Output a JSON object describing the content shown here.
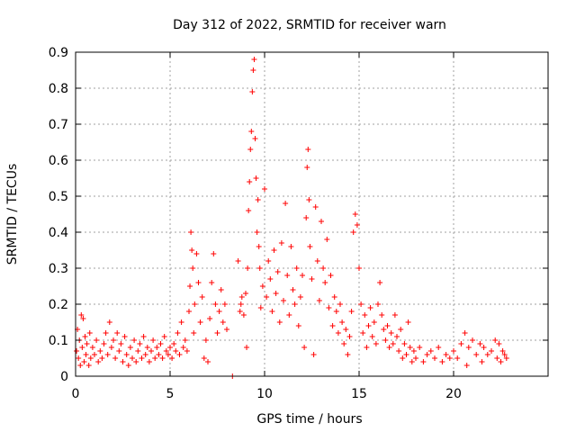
{
  "chart_data": {
    "type": "scatter",
    "title": "Day 312 of 2022, SRMTID for receiver warn",
    "xlabel": "GPS time / hours",
    "ylabel": "SRMTID / TECUs",
    "xlim": [
      0,
      25
    ],
    "ylim": [
      0,
      0.9
    ],
    "x_ticks": [
      0,
      5,
      10,
      15,
      20
    ],
    "y_ticks": [
      0,
      0.1,
      0.2,
      0.3,
      0.4,
      0.5,
      0.6,
      0.7,
      0.8,
      0.9
    ],
    "x_tick_labels": [
      "0",
      "5",
      "10",
      "15",
      "20"
    ],
    "y_tick_labels": [
      "0",
      "0.1",
      "0.2",
      "0.3",
      "0.4",
      "0.5",
      "0.6",
      "0.7",
      "0.8",
      "0.9"
    ],
    "grid": true,
    "marker": "+",
    "marker_color": "#ff0000",
    "series": [
      {
        "name": "SRMTID",
        "points": [
          [
            0.05,
            0.07
          ],
          [
            0.1,
            0.13
          ],
          [
            0.15,
            0.05
          ],
          [
            0.2,
            0.1
          ],
          [
            0.25,
            0.03
          ],
          [
            0.3,
            0.17
          ],
          [
            0.35,
            0.08
          ],
          [
            0.4,
            0.16
          ],
          [
            0.45,
            0.04
          ],
          [
            0.5,
            0.11
          ],
          [
            0.55,
            0.06
          ],
          [
            0.6,
            0.09
          ],
          [
            0.7,
            0.03
          ],
          [
            0.75,
            0.12
          ],
          [
            0.8,
            0.05
          ],
          [
            0.9,
            0.08
          ],
          [
            1.0,
            0.06
          ],
          [
            1.1,
            0.1
          ],
          [
            1.2,
            0.04
          ],
          [
            1.3,
            0.07
          ],
          [
            1.4,
            0.05
          ],
          [
            1.5,
            0.09
          ],
          [
            1.6,
            0.12
          ],
          [
            1.7,
            0.06
          ],
          [
            1.8,
            0.15
          ],
          [
            1.9,
            0.08
          ],
          [
            2.0,
            0.1
          ],
          [
            2.1,
            0.05
          ],
          [
            2.2,
            0.12
          ],
          [
            2.3,
            0.07
          ],
          [
            2.4,
            0.09
          ],
          [
            2.5,
            0.04
          ],
          [
            2.6,
            0.11
          ],
          [
            2.7,
            0.06
          ],
          [
            2.8,
            0.03
          ],
          [
            2.9,
            0.08
          ],
          [
            3.0,
            0.05
          ],
          [
            3.1,
            0.1
          ],
          [
            3.2,
            0.04
          ],
          [
            3.3,
            0.07
          ],
          [
            3.4,
            0.09
          ],
          [
            3.5,
            0.05
          ],
          [
            3.6,
            0.11
          ],
          [
            3.7,
            0.06
          ],
          [
            3.8,
            0.08
          ],
          [
            3.9,
            0.04
          ],
          [
            4.0,
            0.07
          ],
          [
            4.1,
            0.1
          ],
          [
            4.2,
            0.05
          ],
          [
            4.3,
            0.08
          ],
          [
            4.4,
            0.06
          ],
          [
            4.5,
            0.09
          ],
          [
            4.6,
            0.05
          ],
          [
            4.7,
            0.11
          ],
          [
            4.8,
            0.07
          ],
          [
            4.9,
            0.06
          ],
          [
            5.0,
            0.08
          ],
          [
            5.1,
            0.05
          ],
          [
            5.2,
            0.09
          ],
          [
            5.3,
            0.07
          ],
          [
            5.4,
            0.12
          ],
          [
            5.5,
            0.06
          ],
          [
            5.6,
            0.15
          ],
          [
            5.7,
            0.08
          ],
          [
            5.8,
            0.1
          ],
          [
            5.9,
            0.07
          ],
          [
            6.0,
            0.18
          ],
          [
            6.05,
            0.25
          ],
          [
            6.1,
            0.4
          ],
          [
            6.15,
            0.35
          ],
          [
            6.2,
            0.3
          ],
          [
            6.25,
            0.12
          ],
          [
            6.3,
            0.2
          ],
          [
            6.4,
            0.34
          ],
          [
            6.5,
            0.26
          ],
          [
            6.6,
            0.15
          ],
          [
            6.7,
            0.22
          ],
          [
            6.8,
            0.05
          ],
          [
            6.9,
            0.1
          ],
          [
            7.0,
            0.04
          ],
          [
            7.1,
            0.16
          ],
          [
            7.2,
            0.26
          ],
          [
            7.3,
            0.34
          ],
          [
            7.4,
            0.2
          ],
          [
            7.5,
            0.12
          ],
          [
            7.6,
            0.18
          ],
          [
            7.7,
            0.24
          ],
          [
            7.8,
            0.15
          ],
          [
            7.9,
            0.2
          ],
          [
            8.0,
            0.13
          ],
          [
            8.3,
            0.0
          ],
          [
            8.6,
            0.32
          ],
          [
            8.7,
            0.18
          ],
          [
            8.75,
            0.2
          ],
          [
            8.8,
            0.22
          ],
          [
            8.9,
            0.17
          ],
          [
            9.0,
            0.23
          ],
          [
            9.05,
            0.08
          ],
          [
            9.1,
            0.3
          ],
          [
            9.15,
            0.46
          ],
          [
            9.2,
            0.54
          ],
          [
            9.25,
            0.63
          ],
          [
            9.3,
            0.68
          ],
          [
            9.35,
            0.79
          ],
          [
            9.4,
            0.85
          ],
          [
            9.45,
            0.88
          ],
          [
            9.5,
            0.66
          ],
          [
            9.55,
            0.55
          ],
          [
            9.6,
            0.4
          ],
          [
            9.65,
            0.49
          ],
          [
            9.7,
            0.36
          ],
          [
            9.75,
            0.3
          ],
          [
            9.8,
            0.19
          ],
          [
            9.9,
            0.25
          ],
          [
            10.0,
            0.52
          ],
          [
            10.1,
            0.22
          ],
          [
            10.2,
            0.32
          ],
          [
            10.3,
            0.27
          ],
          [
            10.4,
            0.18
          ],
          [
            10.5,
            0.35
          ],
          [
            10.6,
            0.23
          ],
          [
            10.7,
            0.29
          ],
          [
            10.8,
            0.15
          ],
          [
            10.9,
            0.37
          ],
          [
            11.0,
            0.21
          ],
          [
            11.1,
            0.48
          ],
          [
            11.2,
            0.28
          ],
          [
            11.3,
            0.17
          ],
          [
            11.4,
            0.36
          ],
          [
            11.5,
            0.24
          ],
          [
            11.6,
            0.2
          ],
          [
            11.7,
            0.3
          ],
          [
            11.8,
            0.14
          ],
          [
            11.9,
            0.22
          ],
          [
            12.0,
            0.28
          ],
          [
            12.1,
            0.08
          ],
          [
            12.2,
            0.44
          ],
          [
            12.25,
            0.58
          ],
          [
            12.3,
            0.63
          ],
          [
            12.35,
            0.49
          ],
          [
            12.4,
            0.36
          ],
          [
            12.5,
            0.27
          ],
          [
            12.6,
            0.06
          ],
          [
            12.7,
            0.47
          ],
          [
            12.8,
            0.32
          ],
          [
            12.9,
            0.21
          ],
          [
            13.0,
            0.43
          ],
          [
            13.1,
            0.3
          ],
          [
            13.2,
            0.26
          ],
          [
            13.3,
            0.38
          ],
          [
            13.4,
            0.19
          ],
          [
            13.5,
            0.28
          ],
          [
            13.6,
            0.14
          ],
          [
            13.7,
            0.22
          ],
          [
            13.8,
            0.18
          ],
          [
            13.9,
            0.12
          ],
          [
            14.0,
            0.2
          ],
          [
            14.1,
            0.15
          ],
          [
            14.2,
            0.09
          ],
          [
            14.3,
            0.13
          ],
          [
            14.4,
            0.06
          ],
          [
            14.5,
            0.11
          ],
          [
            14.6,
            0.18
          ],
          [
            14.7,
            0.4
          ],
          [
            14.8,
            0.45
          ],
          [
            14.9,
            0.42
          ],
          [
            15.0,
            0.3
          ],
          [
            15.1,
            0.2
          ],
          [
            15.2,
            0.12
          ],
          [
            15.3,
            0.17
          ],
          [
            15.4,
            0.08
          ],
          [
            15.5,
            0.14
          ],
          [
            15.6,
            0.19
          ],
          [
            15.7,
            0.11
          ],
          [
            15.8,
            0.15
          ],
          [
            15.9,
            0.09
          ],
          [
            16.0,
            0.2
          ],
          [
            16.1,
            0.26
          ],
          [
            16.2,
            0.17
          ],
          [
            16.3,
            0.13
          ],
          [
            16.4,
            0.1
          ],
          [
            16.5,
            0.14
          ],
          [
            16.6,
            0.08
          ],
          [
            16.7,
            0.12
          ],
          [
            16.8,
            0.09
          ],
          [
            16.9,
            0.17
          ],
          [
            17.0,
            0.11
          ],
          [
            17.1,
            0.07
          ],
          [
            17.2,
            0.13
          ],
          [
            17.3,
            0.05
          ],
          [
            17.4,
            0.09
          ],
          [
            17.5,
            0.06
          ],
          [
            17.6,
            0.15
          ],
          [
            17.7,
            0.08
          ],
          [
            17.8,
            0.04
          ],
          [
            17.9,
            0.07
          ],
          [
            18.0,
            0.05
          ],
          [
            18.2,
            0.08
          ],
          [
            18.4,
            0.04
          ],
          [
            18.6,
            0.06
          ],
          [
            18.8,
            0.07
          ],
          [
            19.0,
            0.05
          ],
          [
            19.2,
            0.08
          ],
          [
            19.4,
            0.04
          ],
          [
            19.6,
            0.06
          ],
          [
            19.8,
            0.05
          ],
          [
            20.0,
            0.07
          ],
          [
            20.2,
            0.05
          ],
          [
            20.4,
            0.09
          ],
          [
            20.6,
            0.12
          ],
          [
            20.7,
            0.03
          ],
          [
            20.8,
            0.08
          ],
          [
            21.0,
            0.1
          ],
          [
            21.2,
            0.06
          ],
          [
            21.4,
            0.09
          ],
          [
            21.5,
            0.04
          ],
          [
            21.6,
            0.08
          ],
          [
            21.8,
            0.06
          ],
          [
            22.0,
            0.07
          ],
          [
            22.2,
            0.1
          ],
          [
            22.3,
            0.05
          ],
          [
            22.4,
            0.09
          ],
          [
            22.5,
            0.04
          ],
          [
            22.6,
            0.07
          ],
          [
            22.7,
            0.06
          ],
          [
            22.8,
            0.05
          ]
        ]
      }
    ]
  }
}
